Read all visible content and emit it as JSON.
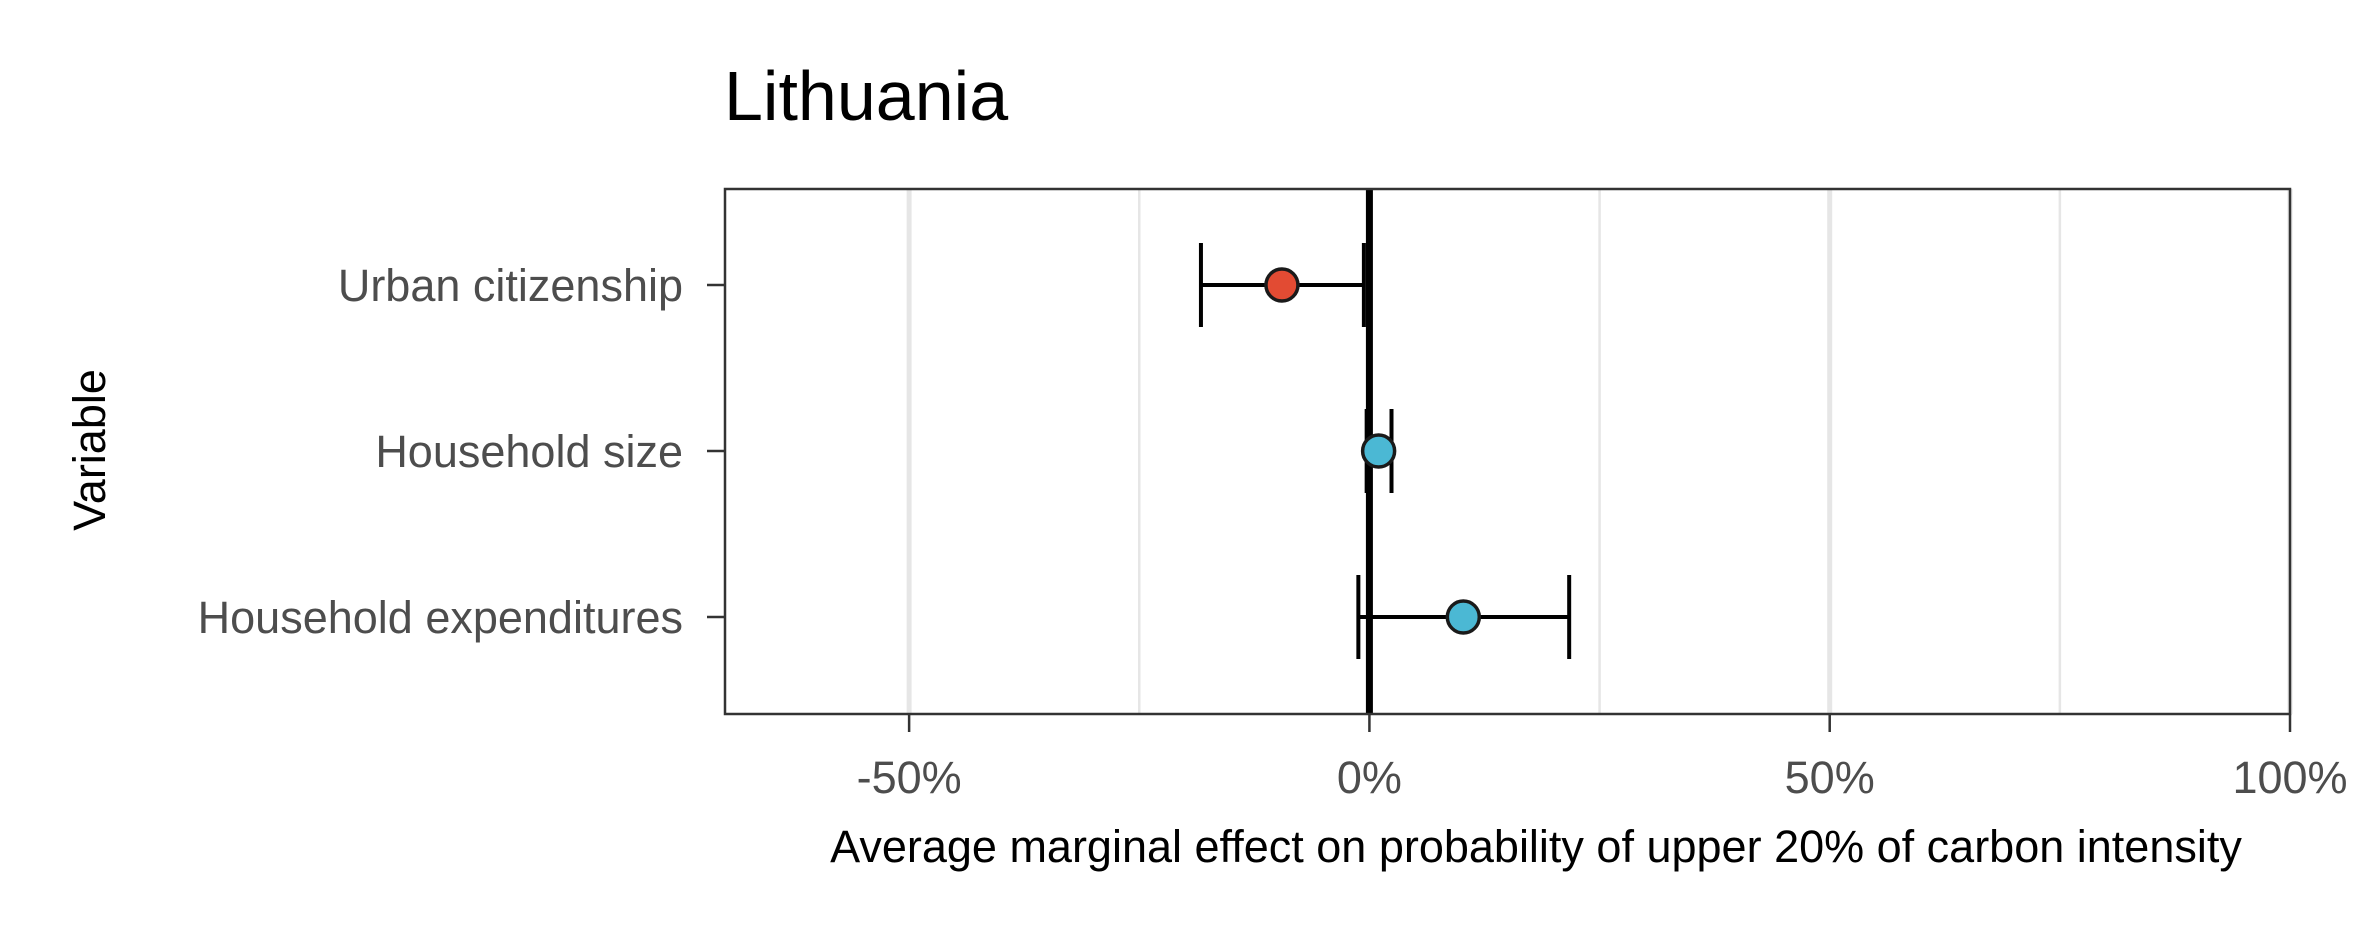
{
  "chart_data": {
    "type": "scatter",
    "title": "Lithuania",
    "xlabel": "Average marginal effect on probability of upper 20% of carbon intensity",
    "ylabel": "Variable",
    "xlim": [
      -0.7,
      1.0
    ],
    "x_ticks": [
      -0.5,
      0,
      0.5,
      1.0
    ],
    "x_tick_labels": [
      "-50%",
      "0%",
      "50%",
      "100%"
    ],
    "minor_grid": [
      -0.25,
      0.25,
      0.75
    ],
    "grid": "vertical",
    "reference_line": 0,
    "categories": [
      "Urban citizenship",
      "Household size",
      "Household expenditures"
    ],
    "points": [
      {
        "variable": "Urban citizenship",
        "estimate": -0.095,
        "ci_low": -0.183,
        "ci_high": -0.006,
        "color": "#E24B33"
      },
      {
        "variable": "Household size",
        "estimate": 0.01,
        "ci_low": -0.003,
        "ci_high": 0.024,
        "color": "#4BB8D4"
      },
      {
        "variable": "Household expenditures",
        "estimate": 0.102,
        "ci_low": -0.012,
        "ci_high": 0.217,
        "color": "#4BB8D4"
      }
    ],
    "colors": {
      "negative": "#E24B33",
      "positive": "#4BB8D4",
      "panel_border": "#333333",
      "grid": "#E6E6E6",
      "axis_text": "#4D4D4D"
    }
  }
}
